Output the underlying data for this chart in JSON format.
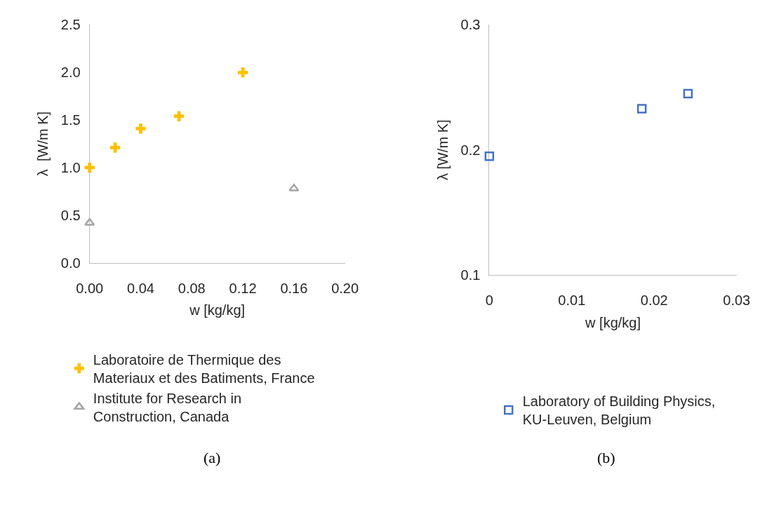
{
  "chart_data": [
    {
      "type": "scatter",
      "xlabel": "w [kg/kg]",
      "ylabel": "λ  [W/m K]",
      "xlim": [
        0,
        0.2
      ],
      "xticks": [
        {
          "value": 0,
          "label": "0.00"
        },
        0.04,
        0.08,
        0.12,
        0.16,
        {
          "value": 0.2,
          "label": "0.20"
        }
      ],
      "ylim": [
        0,
        2.5
      ],
      "yticks": [
        {
          "value": 0,
          "label": "0.0"
        },
        0.5,
        {
          "value": 1,
          "label": "1.0"
        },
        1.5,
        {
          "value": 2,
          "label": "2.0"
        },
        2.5
      ],
      "grid": false,
      "legend": "bottom",
      "annotations": [
        "(a)"
      ],
      "series": [
        {
          "name": "Laboratoire de Thermique des Materiaux et des Batiments, France",
          "color": "#ffc000",
          "marker": "cross",
          "x": [
            0,
            0.02,
            0.04,
            0.07,
            0.12
          ],
          "values": [
            1.0,
            1.21,
            1.41,
            1.54,
            2.0
          ]
        },
        {
          "name": "Institute for Research in Construction, Canada",
          "color": "#a5a5a5",
          "marker": "triangle",
          "x": [
            0,
            0.16
          ],
          "values": [
            0.42,
            0.78
          ]
        }
      ]
    },
    {
      "type": "scatter",
      "xlabel": "w [kg/kg]",
      "ylabel": "λ [W/m K]",
      "xlim": [
        0,
        0.03
      ],
      "xticks": [
        0,
        0.01,
        0.02,
        0.03
      ],
      "ylim": [
        0.1,
        0.3
      ],
      "yticks": [
        0.1,
        0.2,
        0.3
      ],
      "grid": false,
      "legend": "bottom",
      "annotations": [
        "(b)"
      ],
      "series": [
        {
          "name": "Laboratory of Building Physics, KU-Leuven, Belgium",
          "color": "#4472c4",
          "marker": "square",
          "x": [
            0,
            0.0185,
            0.0241
          ],
          "values": [
            0.195,
            0.233,
            0.245
          ]
        }
      ]
    }
  ]
}
